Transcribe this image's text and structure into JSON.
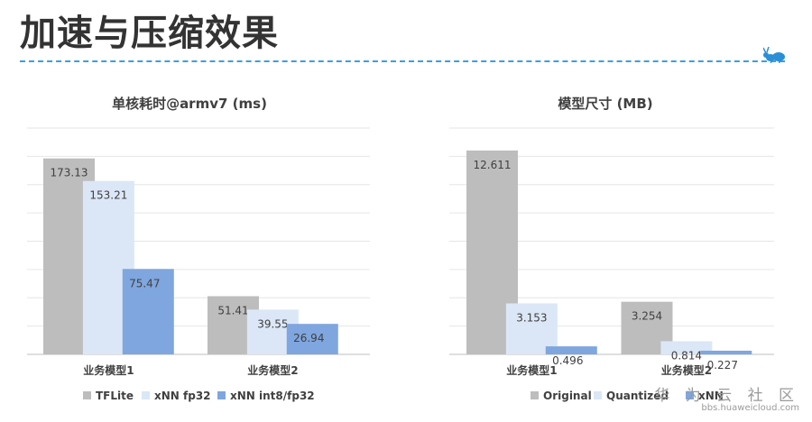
{
  "page": {
    "title": "加速与压缩效果",
    "footer_brand": "华 为 云 社 区",
    "footer_url": "bbs.huaweicloud.com"
  },
  "colors": {
    "dash": "#3aa0e0",
    "grid": "#e6e6e6",
    "axis": "#bfbfbf"
  },
  "chart_data": [
    {
      "type": "bar",
      "title": "单核耗时@armv7 (ms)",
      "categories": [
        "业务模型1",
        "业务模型2"
      ],
      "ylim": [
        0,
        200
      ],
      "grid": true,
      "legend": "bottom",
      "series": [
        {
          "name": "TFLite",
          "color": "#bdbdbd",
          "values": [
            173.13,
            51.41
          ],
          "labels": [
            "173.13",
            "51.41"
          ]
        },
        {
          "name": "xNN fp32",
          "color": "#dbe7f6",
          "values": [
            153.21,
            39.55
          ],
          "labels": [
            "153.21",
            "39.55"
          ]
        },
        {
          "name": "xNN int8/fp32",
          "color": "#7fa6de",
          "values": [
            75.47,
            26.94
          ],
          "labels": [
            "75.47",
            "26.94"
          ]
        }
      ]
    },
    {
      "type": "bar",
      "title": "模型尺寸 (MB)",
      "categories": [
        "业务模型1",
        "业务模型2"
      ],
      "ylim": [
        0,
        14
      ],
      "grid": true,
      "legend": "bottom",
      "series": [
        {
          "name": "Original",
          "color": "#bdbdbd",
          "values": [
            12.611,
            3.254
          ],
          "labels": [
            "12.611",
            "3.254"
          ]
        },
        {
          "name": "Quantized",
          "color": "#dbe7f6",
          "values": [
            3.153,
            0.814
          ],
          "labels": [
            "3.153",
            "0.814"
          ]
        },
        {
          "name": "xNN",
          "color": "#7fa6de",
          "values": [
            0.496,
            0.227
          ],
          "labels": [
            "0.496",
            "0.227"
          ]
        }
      ]
    }
  ]
}
